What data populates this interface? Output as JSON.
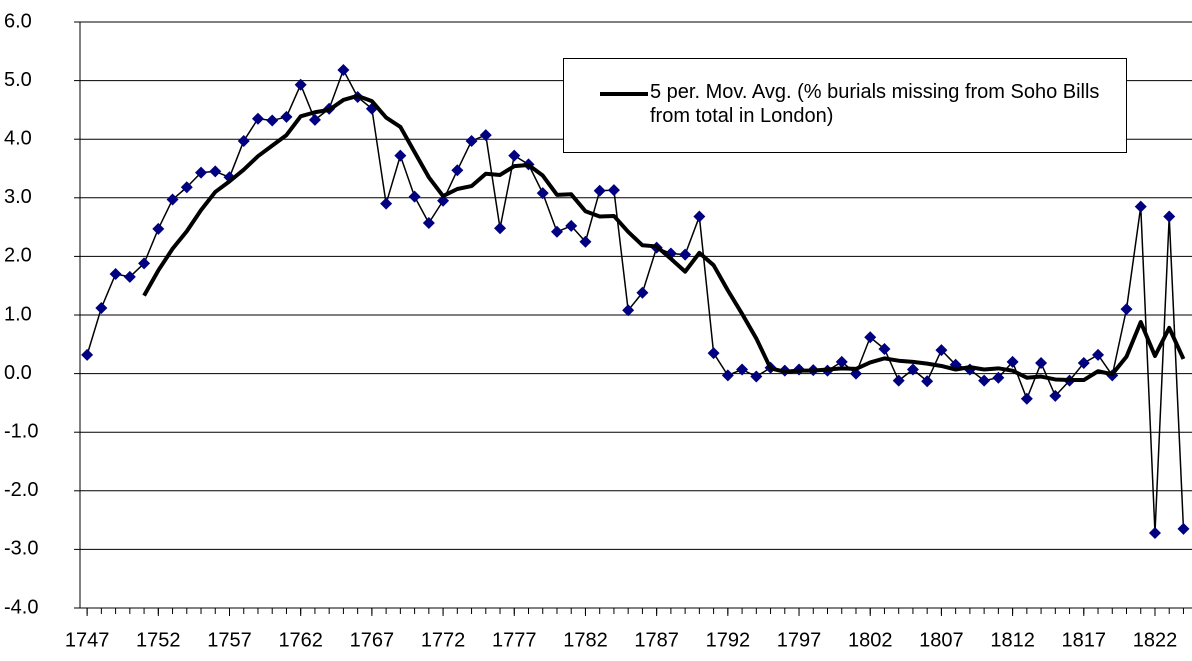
{
  "chart_data": {
    "type": "line",
    "x": [
      1747,
      1748,
      1749,
      1750,
      1751,
      1752,
      1753,
      1754,
      1755,
      1756,
      1757,
      1758,
      1759,
      1760,
      1761,
      1762,
      1763,
      1764,
      1765,
      1766,
      1767,
      1768,
      1769,
      1770,
      1771,
      1772,
      1773,
      1774,
      1775,
      1776,
      1777,
      1778,
      1779,
      1780,
      1781,
      1782,
      1783,
      1784,
      1785,
      1786,
      1787,
      1788,
      1789,
      1790,
      1791,
      1792,
      1793,
      1794,
      1795,
      1796,
      1797,
      1798,
      1799,
      1800,
      1801,
      1802,
      1803,
      1804,
      1805,
      1806,
      1807,
      1808,
      1809,
      1810,
      1811,
      1812,
      1813,
      1814,
      1815,
      1816,
      1817,
      1818,
      1819,
      1820,
      1821,
      1822,
      1823,
      1824
    ],
    "series": [
      {
        "color": "#000080",
        "line_color": "#000000",
        "marker": "diamond",
        "values": [
          0.32,
          1.12,
          1.7,
          1.65,
          1.88,
          2.47,
          2.97,
          3.18,
          3.43,
          3.45,
          3.35,
          3.97,
          4.35,
          4.32,
          4.38,
          4.93,
          4.33,
          4.52,
          5.18,
          4.72,
          4.52,
          2.9,
          3.72,
          3.02,
          2.57,
          2.95,
          3.47,
          3.97,
          4.07,
          2.48,
          3.72,
          3.57,
          3.08,
          2.42,
          2.52,
          2.25,
          3.12,
          3.13,
          1.08,
          1.38,
          2.15,
          2.05,
          2.03,
          2.68,
          0.35,
          -0.03,
          0.07,
          -0.05,
          0.1,
          0.05,
          0.07,
          0.06,
          0.05,
          0.2,
          0.0,
          0.62,
          0.42,
          -0.12,
          0.07,
          -0.13,
          0.4,
          0.15,
          0.07,
          -0.12,
          -0.07,
          0.2,
          -0.43,
          0.18,
          -0.38,
          -0.12,
          0.18,
          0.32,
          -0.03,
          1.1,
          2.85,
          -2.72,
          2.68,
          -2.65
        ]
      },
      {
        "name": "5 per. Mov. Avg. (% burials missing from Soho Bills from total in London)",
        "color": "#000000",
        "values": [
          null,
          null,
          null,
          null,
          1.33,
          1.76,
          2.13,
          2.43,
          2.79,
          3.1,
          3.28,
          3.48,
          3.71,
          3.89,
          4.07,
          4.39,
          4.46,
          4.5,
          4.67,
          4.74,
          4.65,
          4.37,
          4.21,
          3.78,
          3.35,
          3.03,
          3.15,
          3.2,
          3.41,
          3.39,
          3.54,
          3.56,
          3.38,
          3.05,
          3.06,
          2.77,
          2.68,
          2.69,
          2.42,
          2.19,
          2.17,
          1.96,
          1.74,
          2.06,
          1.85,
          1.42,
          1.02,
          0.6,
          0.09,
          0.03,
          0.05,
          0.05,
          0.07,
          0.09,
          0.08,
          0.19,
          0.26,
          0.22,
          0.2,
          0.17,
          0.13,
          0.07,
          0.11,
          0.07,
          0.09,
          0.05,
          -0.07,
          -0.05,
          -0.1,
          -0.11,
          -0.11,
          0.04,
          -0.01,
          0.29,
          0.88,
          0.3,
          0.78,
          0.25
        ]
      }
    ],
    "xlim": [
      1746.5,
      1824.6
    ],
    "xticks": [
      1747,
      1752,
      1757,
      1762,
      1767,
      1772,
      1777,
      1782,
      1787,
      1792,
      1797,
      1802,
      1807,
      1812,
      1817,
      1822
    ],
    "ylim": [
      -4,
      6
    ],
    "yticks": [
      {
        "value": -4,
        "label": "-4.0"
      },
      {
        "value": -3,
        "label": "-3.0"
      },
      {
        "value": -2,
        "label": "-2.0"
      },
      {
        "value": -1,
        "label": "-1.0"
      },
      {
        "value": 0,
        "label": "0.0"
      },
      {
        "value": 1,
        "label": "1.0"
      },
      {
        "value": 2,
        "label": "2.0"
      },
      {
        "value": 3,
        "label": "3.0"
      },
      {
        "value": 4,
        "label": "4.0"
      },
      {
        "value": 5,
        "label": "5.0"
      },
      {
        "value": 6,
        "label": "6.0"
      }
    ],
    "grid": true
  }
}
